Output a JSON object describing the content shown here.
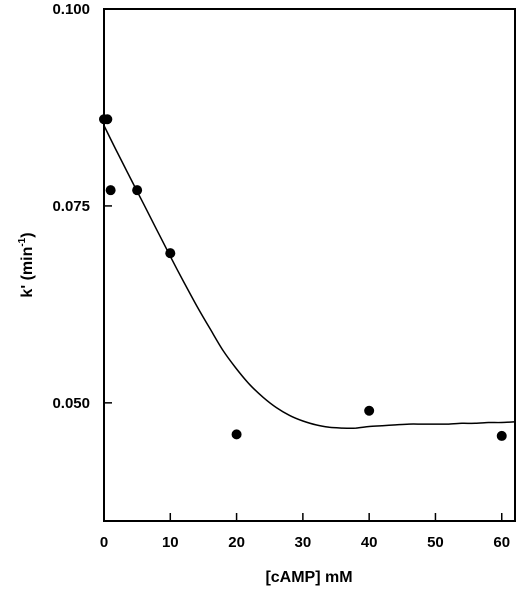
{
  "chart_data": {
    "type": "scatter",
    "xlabel": "[cAMP] mM",
    "ylabel_main": "k' (min",
    "ylabel_sup": "-1",
    "ylabel_close": ")",
    "xlim": [
      0,
      62
    ],
    "ylim": [
      0.035,
      0.1
    ],
    "x_ticks": [
      0,
      10,
      20,
      30,
      40,
      50,
      60
    ],
    "x_tick_labels": [
      "0",
      "10",
      "20",
      "30",
      "40",
      "50",
      "60"
    ],
    "y_ticks": [
      0.05,
      0.075,
      0.1
    ],
    "y_tick_labels": [
      "0.050",
      "0.075",
      "0.100"
    ],
    "grid": false,
    "series": [
      {
        "values_x": [
          0,
          0.5,
          1,
          5,
          10,
          20,
          40,
          60
        ],
        "values_y": [
          0.086,
          0.086,
          0.077,
          0.077,
          0.069,
          0.046,
          0.049,
          0.0458
        ]
      }
    ],
    "fit_curve": {
      "x": [
        0,
        2,
        4,
        6,
        8,
        10,
        12,
        14,
        16,
        18,
        20,
        22,
        24,
        26,
        28,
        30,
        32,
        34,
        36,
        38,
        40,
        42,
        44,
        46,
        48,
        50,
        52,
        54,
        56,
        58,
        60,
        62
      ],
      "y": [
        0.0852,
        0.0818,
        0.0785,
        0.0752,
        0.0719,
        0.0686,
        0.0654,
        0.0623,
        0.0594,
        0.0566,
        0.0543,
        0.0523,
        0.0507,
        0.0494,
        0.0484,
        0.0477,
        0.0472,
        0.0469,
        0.0468,
        0.0468,
        0.047,
        0.0471,
        0.0472,
        0.0473,
        0.0473,
        0.0473,
        0.0473,
        0.0474,
        0.0474,
        0.0475,
        0.0475,
        0.0476
      ]
    }
  }
}
